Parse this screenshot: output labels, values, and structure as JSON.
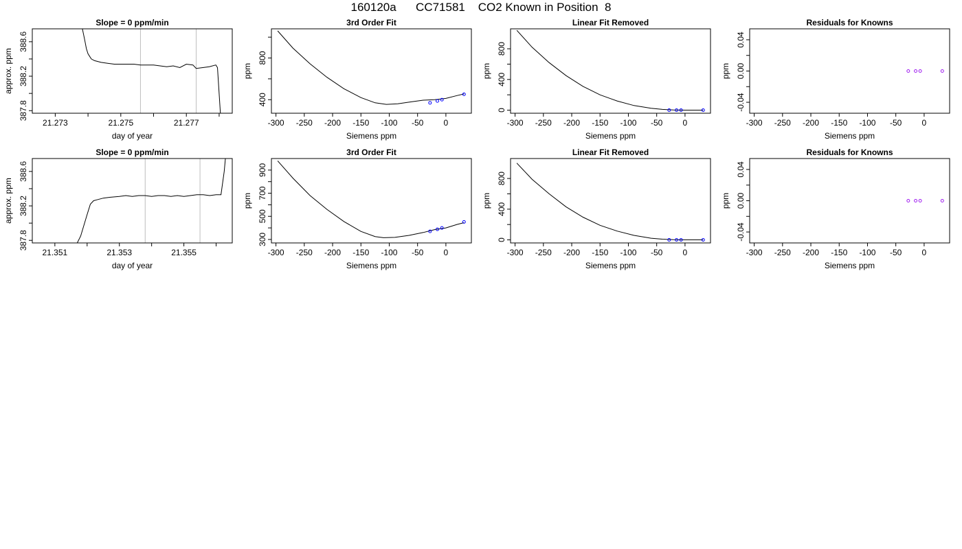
{
  "page_title": "160120a      CC71581    CO2 Known in Position  8",
  "colors": {
    "line": "#000000",
    "grid": "#bebebe",
    "point": "#0000ff",
    "residual": "#a020f0",
    "accent": "#ff0000"
  },
  "chart_data": [
    {
      "type": "line",
      "title": "Slope =  0  ppm/min",
      "xlabel": "day of year",
      "ylabel": "approx. ppm",
      "xlim": [
        21.2723,
        21.2784
      ],
      "ylim": [
        387.77,
        388.75
      ],
      "xticks": [
        {
          "v": 21.273,
          "l": "21.273"
        },
        {
          "v": 21.274,
          "l": ""
        },
        {
          "v": 21.275,
          "l": "21.275"
        },
        {
          "v": 21.276,
          "l": ""
        },
        {
          "v": 21.277,
          "l": "21.277"
        },
        {
          "v": 21.278,
          "l": ""
        }
      ],
      "yticks": [
        {
          "v": 387.8,
          "l": "387.8"
        },
        {
          "v": 388.0,
          "l": ""
        },
        {
          "v": 388.2,
          "l": "388.2"
        },
        {
          "v": 388.4,
          "l": ""
        },
        {
          "v": 388.6,
          "l": "388.6"
        }
      ],
      "vlines": [
        21.2756,
        21.2773
      ],
      "series": [
        {
          "x": [
            21.2738,
            21.2739,
            21.27395,
            21.274,
            21.27405,
            21.2741,
            21.2742,
            21.2744,
            21.2746,
            21.2748,
            21.275,
            21.2752,
            21.2754,
            21.2756,
            21.2758,
            21.276,
            21.2762,
            21.2764,
            21.2766,
            21.2768,
            21.277,
            21.2772,
            21.2773,
            21.2775,
            21.2777,
            21.2779,
            21.27795,
            21.278,
            21.27805
          ],
          "y": [
            388.8,
            388.62,
            388.52,
            388.46,
            388.43,
            388.4,
            388.38,
            388.36,
            388.35,
            388.34,
            388.34,
            388.34,
            388.34,
            388.33,
            388.33,
            388.33,
            388.32,
            388.31,
            388.32,
            388.3,
            388.34,
            388.33,
            388.29,
            388.3,
            388.31,
            388.33,
            388.3,
            388.0,
            387.7
          ]
        }
      ]
    },
    {
      "type": "line",
      "title": "3rd Order Fit",
      "xlabel": "Siemens ppm",
      "ylabel": "ppm",
      "xlim": [
        -308,
        45
      ],
      "ylim": [
        270,
        1080
      ],
      "xticks": [
        {
          "v": -300,
          "l": "-300"
        },
        {
          "v": -250,
          "l": "-250"
        },
        {
          "v": -200,
          "l": "-200"
        },
        {
          "v": -150,
          "l": "-150"
        },
        {
          "v": -100,
          "l": "-100"
        },
        {
          "v": -50,
          "l": "-50"
        },
        {
          "v": 0,
          "l": "0"
        }
      ],
      "yticks": [
        {
          "v": 400,
          "l": "400"
        },
        {
          "v": 600,
          "l": ""
        },
        {
          "v": 800,
          "l": "800"
        },
        {
          "v": 1000,
          "l": ""
        }
      ],
      "curve": {
        "x": [
          -297,
          -270,
          -240,
          -210,
          -180,
          -150,
          -125,
          -105,
          -85,
          -60,
          -40,
          -20,
          0,
          20,
          32
        ],
        "y": [
          1060,
          895,
          745,
          615,
          505,
          420,
          370,
          355,
          360,
          380,
          395,
          400,
          412,
          440,
          455
        ]
      },
      "points": {
        "x": [
          -28,
          -15,
          -7,
          32
        ],
        "y": [
          370,
          388,
          400,
          452
        ]
      }
    },
    {
      "type": "line",
      "title": "Linear Fit Removed",
      "xlabel": "Siemens ppm",
      "ylabel": "ppm",
      "xlim": [
        -308,
        45
      ],
      "ylim": [
        -40,
        1060
      ],
      "xticks": [
        {
          "v": -300,
          "l": "-300"
        },
        {
          "v": -250,
          "l": "-250"
        },
        {
          "v": -200,
          "l": "-200"
        },
        {
          "v": -150,
          "l": "-150"
        },
        {
          "v": -100,
          "l": "-100"
        },
        {
          "v": -50,
          "l": "-50"
        },
        {
          "v": 0,
          "l": "0"
        }
      ],
      "yticks": [
        {
          "v": 0,
          "l": "0"
        },
        {
          "v": 200,
          "l": ""
        },
        {
          "v": 400,
          "l": "400"
        },
        {
          "v": 600,
          "l": ""
        },
        {
          "v": 800,
          "l": "800"
        }
      ],
      "curve": {
        "x": [
          -297,
          -270,
          -240,
          -210,
          -180,
          -150,
          -120,
          -90,
          -60,
          -40,
          -20,
          0,
          32
        ],
        "y": [
          1040,
          820,
          620,
          450,
          310,
          200,
          120,
          60,
          25,
          10,
          3,
          0,
          0
        ]
      },
      "points": {
        "x": [
          -28,
          -15,
          -7,
          32
        ],
        "y": [
          0,
          0,
          0,
          0
        ]
      }
    },
    {
      "type": "scatter",
      "title": "Residuals for Knowns",
      "xlabel": "Siemens ppm",
      "ylabel": "ppm",
      "xlim": [
        -308,
        45
      ],
      "ylim": [
        -0.054,
        0.054
      ],
      "xticks": [
        {
          "v": -300,
          "l": "-300"
        },
        {
          "v": -250,
          "l": "-250"
        },
        {
          "v": -200,
          "l": "-200"
        },
        {
          "v": -150,
          "l": "-150"
        },
        {
          "v": -100,
          "l": "-100"
        },
        {
          "v": -50,
          "l": "-50"
        },
        {
          "v": 0,
          "l": "0"
        }
      ],
      "yticks": [
        {
          "v": -0.04,
          "l": "-0.04"
        },
        {
          "v": -0.02,
          "l": ""
        },
        {
          "v": 0,
          "l": "0.00"
        },
        {
          "v": 0.02,
          "l": ""
        },
        {
          "v": 0.04,
          "l": "0.04"
        }
      ],
      "points": {
        "x": [
          -28,
          -15,
          -7,
          32
        ],
        "y": [
          0,
          0,
          0,
          0
        ]
      }
    },
    {
      "type": "line",
      "title": "Slope =  0  ppm/min",
      "xlabel": "day of year",
      "ylabel": "approx. ppm",
      "xlim": [
        21.3503,
        21.3565
      ],
      "ylim": [
        387.77,
        388.75
      ],
      "xticks": [
        {
          "v": 21.351,
          "l": "21.351"
        },
        {
          "v": 21.352,
          "l": ""
        },
        {
          "v": 21.353,
          "l": "21.353"
        },
        {
          "v": 21.354,
          "l": ""
        },
        {
          "v": 21.355,
          "l": "21.355"
        },
        {
          "v": 21.356,
          "l": ""
        }
      ],
      "yticks": [
        {
          "v": 387.8,
          "l": "387.8"
        },
        {
          "v": 388.0,
          "l": ""
        },
        {
          "v": 388.2,
          "l": "388.2"
        },
        {
          "v": 388.4,
          "l": ""
        },
        {
          "v": 388.6,
          "l": "388.6"
        }
      ],
      "vlines": [
        21.3538,
        21.3555
      ],
      "series": [
        {
          "x": [
            21.3516,
            21.3518,
            21.352,
            21.3521,
            21.3522,
            21.3523,
            21.3525,
            21.3527,
            21.353,
            21.3532,
            21.3534,
            21.3536,
            21.3538,
            21.354,
            21.3542,
            21.3544,
            21.3546,
            21.3548,
            21.355,
            21.3552,
            21.3554,
            21.3556,
            21.3558,
            21.356,
            21.35615,
            21.35625,
            21.3563
          ],
          "y": [
            387.7,
            387.85,
            388.1,
            388.22,
            388.26,
            388.27,
            388.29,
            388.3,
            388.31,
            388.32,
            388.31,
            388.32,
            388.32,
            388.31,
            388.32,
            388.32,
            388.31,
            388.32,
            388.31,
            388.32,
            388.33,
            388.33,
            388.32,
            388.33,
            388.33,
            388.6,
            388.8
          ]
        }
      ]
    },
    {
      "type": "line",
      "title": "3rd Order Fit",
      "xlabel": "Siemens ppm",
      "ylabel": "ppm",
      "xlim": [
        -308,
        45
      ],
      "ylim": [
        270,
        1000
      ],
      "xticks": [
        {
          "v": -300,
          "l": "-300"
        },
        {
          "v": -250,
          "l": "-250"
        },
        {
          "v": -200,
          "l": "-200"
        },
        {
          "v": -150,
          "l": "-150"
        },
        {
          "v": -100,
          "l": "-100"
        },
        {
          "v": -50,
          "l": "-50"
        },
        {
          "v": 0,
          "l": "0"
        }
      ],
      "yticks": [
        {
          "v": 300,
          "l": "300"
        },
        {
          "v": 400,
          "l": ""
        },
        {
          "v": 500,
          "l": "500"
        },
        {
          "v": 600,
          "l": ""
        },
        {
          "v": 700,
          "l": "700"
        },
        {
          "v": 800,
          "l": ""
        },
        {
          "v": 900,
          "l": "900"
        }
      ],
      "curve": {
        "x": [
          -297,
          -270,
          -240,
          -210,
          -180,
          -150,
          -125,
          -110,
          -90,
          -65,
          -40,
          -20,
          0,
          20,
          32
        ],
        "y": [
          980,
          830,
          680,
          560,
          455,
          370,
          325,
          315,
          318,
          335,
          360,
          385,
          400,
          430,
          445
        ]
      },
      "points": {
        "x": [
          -28,
          -15,
          -7,
          32
        ],
        "y": [
          370,
          388,
          400,
          452
        ]
      }
    },
    {
      "type": "line",
      "title": "Linear Fit Removed",
      "xlabel": "Siemens ppm",
      "ylabel": "ppm",
      "xlim": [
        -308,
        45
      ],
      "ylim": [
        -40,
        1060
      ],
      "xticks": [
        {
          "v": -300,
          "l": "-300"
        },
        {
          "v": -250,
          "l": "-250"
        },
        {
          "v": -200,
          "l": "-200"
        },
        {
          "v": -150,
          "l": "-150"
        },
        {
          "v": -100,
          "l": "-100"
        },
        {
          "v": -50,
          "l": "-50"
        },
        {
          "v": 0,
          "l": "0"
        }
      ],
      "yticks": [
        {
          "v": 0,
          "l": "0"
        },
        {
          "v": 200,
          "l": ""
        },
        {
          "v": 400,
          "l": "400"
        },
        {
          "v": 600,
          "l": ""
        },
        {
          "v": 800,
          "l": "800"
        }
      ],
      "curve": {
        "x": [
          -297,
          -270,
          -240,
          -210,
          -180,
          -150,
          -120,
          -90,
          -60,
          -40,
          -20,
          0,
          32
        ],
        "y": [
          1000,
          790,
          600,
          430,
          295,
          190,
          115,
          58,
          22,
          9,
          3,
          0,
          0
        ]
      },
      "points": {
        "x": [
          -28,
          -15,
          -7,
          32
        ],
        "y": [
          0,
          0,
          0,
          0
        ]
      }
    },
    {
      "type": "scatter",
      "title": "Residuals for Knowns",
      "xlabel": "Siemens ppm",
      "ylabel": "ppm",
      "xlim": [
        -308,
        45
      ],
      "ylim": [
        -0.054,
        0.054
      ],
      "xticks": [
        {
          "v": -300,
          "l": "-300"
        },
        {
          "v": -250,
          "l": "-250"
        },
        {
          "v": -200,
          "l": "-200"
        },
        {
          "v": -150,
          "l": "-150"
        },
        {
          "v": -100,
          "l": "-100"
        },
        {
          "v": -50,
          "l": "-50"
        },
        {
          "v": 0,
          "l": "0"
        }
      ],
      "yticks": [
        {
          "v": -0.04,
          "l": "-0.04"
        },
        {
          "v": -0.02,
          "l": ""
        },
        {
          "v": 0,
          "l": "0.00"
        },
        {
          "v": 0.02,
          "l": ""
        },
        {
          "v": 0.04,
          "l": "0.04"
        }
      ],
      "points": {
        "x": [
          -28,
          -15,
          -7,
          32
        ],
        "y": [
          0,
          0,
          0,
          0
        ]
      }
    }
  ]
}
